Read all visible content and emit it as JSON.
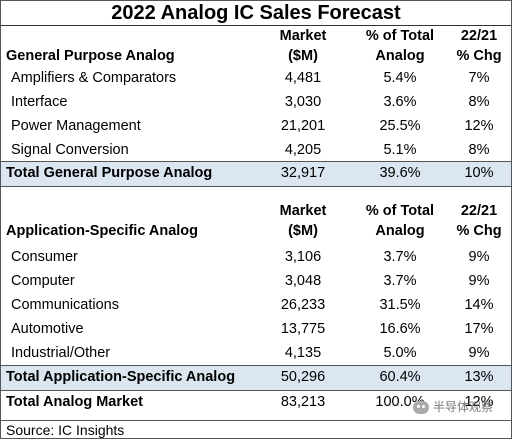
{
  "title": "2022 Analog IC Sales Forecast",
  "general": {
    "header": {
      "label": "General Purpose Analog",
      "market_line1": "Market",
      "market_line2": "($M)",
      "pct_line1": "% of Total",
      "pct_line2": "Analog",
      "chg_line1": "22/21",
      "chg_line2": "% Chg"
    },
    "rows": [
      {
        "label": "Amplifiers & Comparators",
        "market": "4,481",
        "pct": "5.4%",
        "chg": "7%"
      },
      {
        "label": "Interface",
        "market": "3,030",
        "pct": "3.6%",
        "chg": "8%"
      },
      {
        "label": "Power Management",
        "market": "21,201",
        "pct": "25.5%",
        "chg": "12%"
      },
      {
        "label": "Signal Conversion",
        "market": "4,205",
        "pct": "5.1%",
        "chg": "8%"
      }
    ],
    "total": {
      "label": "Total General Purpose Analog",
      "market": "32,917",
      "pct": "39.6%",
      "chg": "10%"
    }
  },
  "specific": {
    "header": {
      "label": "Application-Specific Analog",
      "market_line1": "Market",
      "market_line2": "($M)",
      "pct_line1": "% of Total",
      "pct_line2": "Analog",
      "chg_line1": "22/21",
      "chg_line2": "% Chg"
    },
    "rows": [
      {
        "label": "Consumer",
        "market": "3,106",
        "pct": "3.7%",
        "chg": "9%"
      },
      {
        "label": "Computer",
        "market": "3,048",
        "pct": "3.7%",
        "chg": "9%"
      },
      {
        "label": "Communications",
        "market": "26,233",
        "pct": "31.5%",
        "chg": "14%"
      },
      {
        "label": "Automotive",
        "market": "13,775",
        "pct": "16.6%",
        "chg": "17%"
      },
      {
        "label": "Industrial/Other",
        "market": "4,135",
        "pct": "5.0%",
        "chg": "9%"
      }
    ],
    "total": {
      "label": "Total Application-Specific Analog",
      "market": "50,296",
      "pct": "60.4%",
      "chg": "13%"
    }
  },
  "grand_total": {
    "label": "Total Analog Market",
    "market": "83,213",
    "pct": "100.0%",
    "chg": "12%"
  },
  "source": "Source:  IC Insights",
  "watermark": "半导体观察"
}
